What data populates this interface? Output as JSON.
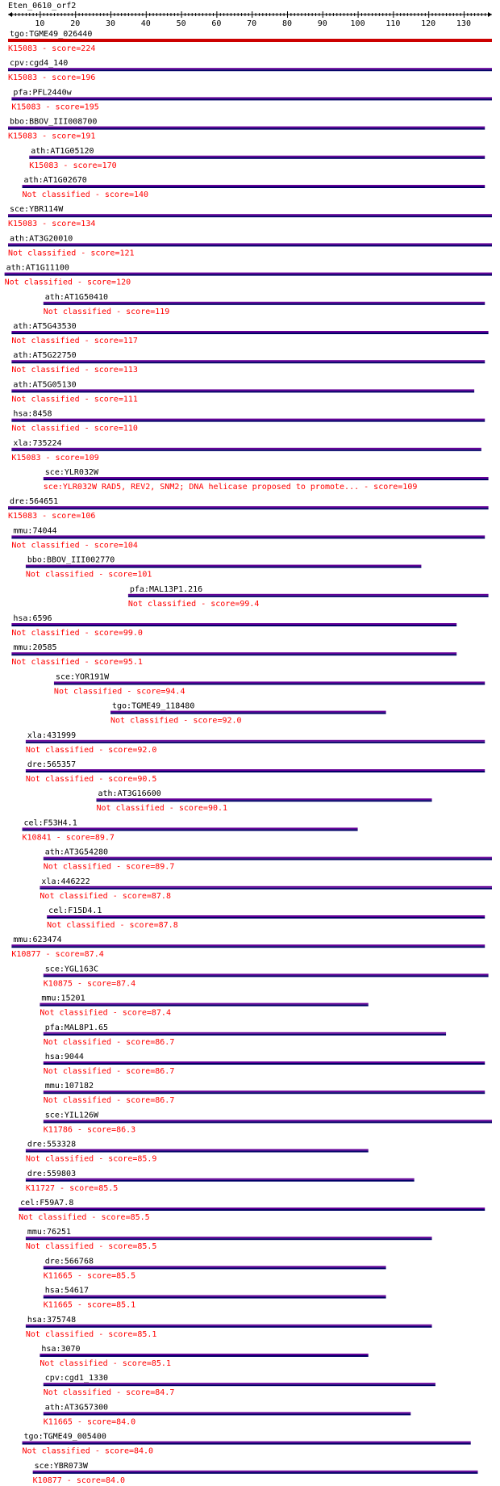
{
  "query": {
    "title": "Eten_0610_orf2"
  },
  "axis": {
    "min": 1,
    "max": 138,
    "ticks": [
      10,
      20,
      30,
      40,
      50,
      60,
      70,
      80,
      90,
      100,
      110,
      120,
      130
    ]
  },
  "colors": {
    "top_hit_bar": "#cc0000",
    "hit_bar_purple": "#660099",
    "hit_bar_blue": "#000066",
    "hit_name": "#000000",
    "hit_class": "#ff0000"
  },
  "hits": [
    {
      "name": "tgo:TGME49_026440",
      "label": "K15083 - score=224",
      "start": 1,
      "end": 138,
      "top": true
    },
    {
      "name": "cpv:cgd4_140",
      "label": "K15083 - score=196",
      "start": 1,
      "end": 138
    },
    {
      "name": "pfa:PFL2440w",
      "label": "K15083 - score=195",
      "start": 2,
      "end": 138
    },
    {
      "name": "bbo:BBOV_III008700",
      "label": "K15083 - score=191",
      "start": 1,
      "end": 136
    },
    {
      "name": "ath:AT1G05120",
      "label": "K15083 - score=170",
      "start": 7,
      "end": 136
    },
    {
      "name": "ath:AT1G02670",
      "label": "Not classified - score=140",
      "start": 5,
      "end": 136
    },
    {
      "name": "sce:YBR114W",
      "label": "K15083 - score=134",
      "start": 1,
      "end": 138
    },
    {
      "name": "ath:AT3G20010",
      "label": "Not classified - score=121",
      "start": 1,
      "end": 138
    },
    {
      "name": "ath:AT1G11100",
      "label": "Not classified - score=120",
      "start": 0,
      "end": 138
    },
    {
      "name": "ath:AT1G50410",
      "label": "Not classified - score=119",
      "start": 11,
      "end": 136
    },
    {
      "name": "ath:AT5G43530",
      "label": "Not classified - score=117",
      "start": 2,
      "end": 137
    },
    {
      "name": "ath:AT5G22750",
      "label": "Not classified - score=113",
      "start": 2,
      "end": 136
    },
    {
      "name": "ath:AT5G05130",
      "label": "Not classified - score=111",
      "start": 2,
      "end": 133
    },
    {
      "name": "hsa:8458",
      "label": "Not classified - score=110",
      "start": 2,
      "end": 136
    },
    {
      "name": "xla:735224",
      "label": "K15083 - score=109",
      "start": 2,
      "end": 135
    },
    {
      "name": "sce:YLR032W",
      "label": "sce:YLR032W  RAD5, REV2, SNM2; DNA helicase proposed to promote... - score=109",
      "start": 11,
      "end": 137
    },
    {
      "name": "dre:564651",
      "label": "K15083 - score=106",
      "start": 1,
      "end": 137
    },
    {
      "name": "mmu:74044",
      "label": "Not classified - score=104",
      "start": 2,
      "end": 136
    },
    {
      "name": "bbo:BBOV_III002770",
      "label": "Not classified - score=101",
      "start": 6,
      "end": 118
    },
    {
      "name": "pfa:MAL13P1.216",
      "label": "Not classified - score=99.4",
      "start": 35,
      "end": 137
    },
    {
      "name": "hsa:6596",
      "label": "Not classified - score=99.0",
      "start": 2,
      "end": 128
    },
    {
      "name": "mmu:20585",
      "label": "Not classified - score=95.1",
      "start": 2,
      "end": 128
    },
    {
      "name": "sce:YOR191W",
      "label": "Not classified - score=94.4",
      "start": 14,
      "end": 136
    },
    {
      "name": "tgo:TGME49_118480",
      "label": "Not classified - score=92.0",
      "start": 30,
      "end": 108
    },
    {
      "name": "xla:431999",
      "label": "Not classified - score=92.0",
      "start": 6,
      "end": 136
    },
    {
      "name": "dre:565357",
      "label": "Not classified - score=90.5",
      "start": 6,
      "end": 136
    },
    {
      "name": "ath:AT3G16600",
      "label": "Not classified - score=90.1",
      "start": 26,
      "end": 121
    },
    {
      "name": "cel:F53H4.1",
      "label": "K10841 - score=89.7",
      "start": 5,
      "end": 100
    },
    {
      "name": "ath:AT3G54280",
      "label": "Not classified - score=89.7",
      "start": 11,
      "end": 138
    },
    {
      "name": "xla:446222",
      "label": "Not classified - score=87.8",
      "start": 10,
      "end": 138
    },
    {
      "name": "cel:F15D4.1",
      "label": "Not classified - score=87.8",
      "start": 12,
      "end": 136
    },
    {
      "name": "mmu:623474",
      "label": "K10877 - score=87.4",
      "start": 2,
      "end": 136
    },
    {
      "name": "sce:YGL163C",
      "label": "K10875 - score=87.4",
      "start": 11,
      "end": 137
    },
    {
      "name": "mmu:15201",
      "label": "Not classified - score=87.4",
      "start": 10,
      "end": 103
    },
    {
      "name": "pfa:MAL8P1.65",
      "label": "Not classified - score=86.7",
      "start": 11,
      "end": 125
    },
    {
      "name": "hsa:9044",
      "label": "Not classified - score=86.7",
      "start": 11,
      "end": 136
    },
    {
      "name": "mmu:107182",
      "label": "Not classified - score=86.7",
      "start": 11,
      "end": 136
    },
    {
      "name": "sce:YIL126W",
      "label": "K11786 - score=86.3",
      "start": 11,
      "end": 138
    },
    {
      "name": "dre:553328",
      "label": "Not classified - score=85.9",
      "start": 6,
      "end": 103
    },
    {
      "name": "dre:559803",
      "label": "K11727 - score=85.5",
      "start": 6,
      "end": 116
    },
    {
      "name": "cel:F59A7.8",
      "label": "Not classified - score=85.5",
      "start": 4,
      "end": 136
    },
    {
      "name": "mmu:76251",
      "label": "Not classified - score=85.5",
      "start": 6,
      "end": 121
    },
    {
      "name": "dre:566768",
      "label": "K11665 - score=85.5",
      "start": 11,
      "end": 108
    },
    {
      "name": "hsa:54617",
      "label": "K11665 - score=85.1",
      "start": 11,
      "end": 108
    },
    {
      "name": "hsa:375748",
      "label": "Not classified - score=85.1",
      "start": 6,
      "end": 121
    },
    {
      "name": "hsa:3070",
      "label": "Not classified - score=85.1",
      "start": 10,
      "end": 103
    },
    {
      "name": "cpv:cgd1_1330",
      "label": "Not classified - score=84.7",
      "start": 11,
      "end": 122
    },
    {
      "name": "ath:AT3G57300",
      "label": "K11665 - score=84.0",
      "start": 11,
      "end": 115
    },
    {
      "name": "tgo:TGME49_005400",
      "label": "Not classified - score=84.0",
      "start": 5,
      "end": 132
    },
    {
      "name": "sce:YBR073W",
      "label": "K10877 - score=84.0",
      "start": 8,
      "end": 134
    }
  ]
}
